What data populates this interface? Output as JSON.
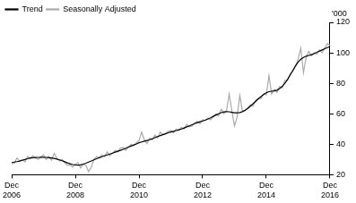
{
  "chart_data": {
    "type": "line",
    "ylabel": "'000",
    "categories": [
      "Dec 2006",
      null,
      null,
      null,
      null,
      null,
      null,
      null,
      null,
      null,
      null,
      null,
      null,
      null,
      null,
      null,
      null,
      null,
      null,
      null,
      null,
      null,
      null,
      null,
      "Dec 2008",
      null,
      null,
      null,
      null,
      null,
      null,
      null,
      null,
      null,
      null,
      null,
      null,
      null,
      null,
      null,
      null,
      null,
      null,
      null,
      null,
      null,
      null,
      null,
      "Dec 2010",
      null,
      null,
      null,
      null,
      null,
      null,
      null,
      null,
      null,
      null,
      null,
      null,
      null,
      null,
      null,
      null,
      null,
      null,
      null,
      null,
      null,
      null,
      null,
      "Dec 2012",
      null,
      null,
      null,
      null,
      null,
      null,
      null,
      null,
      null,
      null,
      null,
      null,
      null,
      null,
      null,
      null,
      null,
      null,
      null,
      null,
      null,
      null,
      null,
      "Dec 2014",
      null,
      null,
      null,
      null,
      null,
      null,
      null,
      null,
      null,
      null,
      null,
      null,
      null,
      null,
      null,
      null,
      null,
      null,
      null,
      null,
      null,
      null,
      null,
      "Dec 2016"
    ],
    "series": [
      {
        "name": "Trend",
        "color": "#000000",
        "values": [
          28,
          28.3,
          28.6,
          29,
          29.5,
          30,
          30.5,
          31,
          31.2,
          31.3,
          31.4,
          31.5,
          31.5,
          31.4,
          31.2,
          31,
          30.7,
          30.3,
          29.8,
          29.2,
          28.5,
          27.8,
          27.2,
          26.7,
          26.4,
          26.3,
          26.5,
          27,
          27.6,
          28.3,
          29,
          29.8,
          30.5,
          31.2,
          31.8,
          32.4,
          33,
          33.6,
          34.2,
          34.8,
          35.4,
          36,
          36.7,
          37.4,
          38.1,
          38.8,
          39.5,
          40.2,
          41,
          41.5,
          42,
          42.5,
          43,
          43.6,
          44.3,
          45,
          45.7,
          46.3,
          46.9,
          47.5,
          48,
          48.5,
          49,
          49.5,
          50,
          50.7,
          51.4,
          52.1,
          52.8,
          53.5,
          54.2,
          54.8,
          55.3,
          55.9,
          56.6,
          57.4,
          58.3,
          59.2,
          60,
          60.7,
          61.2,
          61.4,
          61.3,
          61,
          60.7,
          60.6,
          60.8,
          61.4,
          62.3,
          63.5,
          65,
          66.6,
          68.2,
          69.8,
          71.3,
          72.7,
          73.8,
          74.5,
          74.8,
          75,
          75.5,
          76.5,
          78,
          80,
          82.5,
          85.5,
          88.5,
          91.5,
          94,
          95.8,
          97,
          97.8,
          98.3,
          98.8,
          99.5,
          100.3,
          101.1,
          101.9,
          102.7,
          103.4,
          104.2
        ]
      },
      {
        "name": "Seasonally Adjusted",
        "color": "#aaaaaa",
        "values": [
          27,
          27.5,
          31,
          29,
          30,
          28.5,
          32,
          30.5,
          32.5,
          31,
          30,
          31.5,
          33,
          30,
          32,
          29.5,
          34,
          31,
          29,
          30,
          28,
          26,
          26.5,
          25,
          27,
          28,
          24.5,
          27,
          26,
          22,
          25,
          30,
          32,
          31,
          33,
          32,
          35,
          32.5,
          34,
          36,
          35,
          37.5,
          38,
          36,
          38,
          40,
          39,
          41,
          42.5,
          48,
          43,
          40.5,
          44,
          43,
          46,
          44,
          48,
          46.5,
          47,
          48.5,
          49,
          47.5,
          50,
          49,
          51,
          50,
          53,
          51.5,
          52,
          54,
          55,
          53.5,
          56,
          55.5,
          57,
          56,
          58,
          60,
          58.5,
          63,
          60,
          62,
          73,
          62,
          52,
          58,
          72,
          62,
          62,
          64,
          66,
          65,
          69,
          70,
          70,
          73,
          72.5,
          85,
          73,
          76,
          74,
          78,
          77,
          82,
          82,
          86,
          88,
          91,
          96,
          103,
          87,
          97,
          101,
          98,
          100,
          99,
          102,
          100,
          103,
          106,
          105
        ]
      }
    ],
    "ylim": [
      20,
      120
    ],
    "yticks": [
      20,
      40,
      60,
      80,
      100,
      120
    ],
    "grid": false,
    "legend": "top-left"
  }
}
